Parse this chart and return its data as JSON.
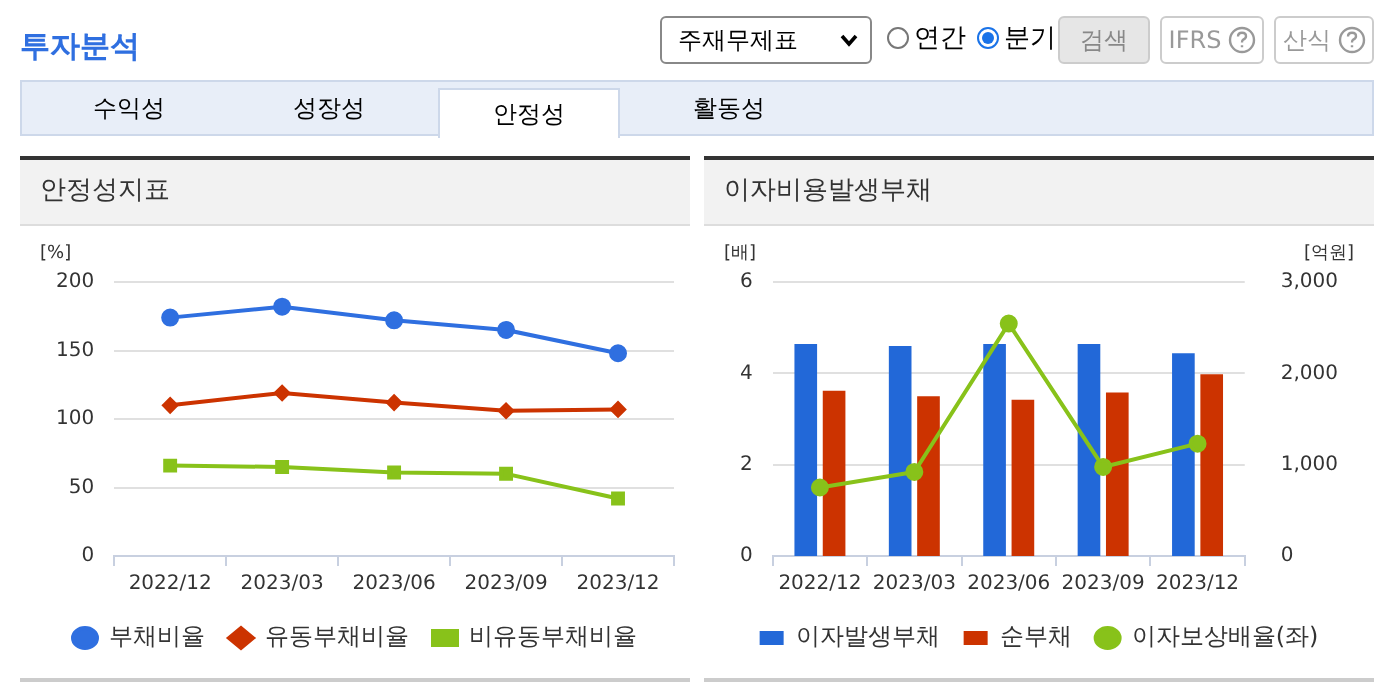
{
  "chart_data": [
    {
      "type": "other",
      "title": "투자분석",
      "annotations": [
        "주재무제표",
        "연간",
        "분기",
        "검색",
        "IFRS",
        "산식",
        "수익성",
        "성장성",
        "안정성",
        "활동성"
      ]
    },
    {
      "type": "line",
      "title": "안정성지표",
      "ylabel": "[%]",
      "categories": [
        "2022/12",
        "2023/03",
        "2023/06",
        "2023/09",
        "2023/12"
      ],
      "series": [
        {
          "name": "부채비율",
          "color": "#2f6fe0",
          "marker": "circle",
          "values": [
            174,
            182,
            172,
            165,
            148
          ]
        },
        {
          "name": "유동부채비율",
          "color": "#cc3300",
          "marker": "diamond",
          "values": [
            110,
            119,
            112,
            106,
            107
          ]
        },
        {
          "name": "비유동부채비율",
          "color": "#88c21a",
          "marker": "square",
          "values": [
            66,
            65,
            61,
            60,
            42
          ]
        }
      ],
      "ylim": [
        0,
        200
      ],
      "yticks": [
        0,
        50,
        100,
        150,
        200
      ],
      "grid": "y",
      "legend": "bottom",
      "line_style": "solid"
    },
    {
      "type": "bar",
      "title": "이자비용발생부채",
      "ylabel": "[배]",
      "y2label": "[억원]",
      "categories": [
        "2022/12",
        "2023/03",
        "2023/06",
        "2023/09",
        "2023/12"
      ],
      "series": [
        {
          "name": "이자발생부채",
          "color": "#2268d8",
          "axis": "y2",
          "values": [
            2320,
            2300,
            2320,
            2320,
            2220
          ]
        },
        {
          "name": "순부채",
          "color": "#cc3300",
          "axis": "y2",
          "values": [
            1810,
            1750,
            1710,
            1790,
            1990
          ]
        },
        {
          "name": "이자보상배율(좌)",
          "type": "line",
          "color": "#88c21a",
          "marker": "circle",
          "values": [
            1.5,
            1.84,
            5.09,
            1.95,
            2.46
          ]
        }
      ],
      "ylim": [
        0,
        6
      ],
      "yticks": [
        0,
        2,
        4,
        6
      ],
      "y2lim": [
        0,
        3000
      ],
      "y2ticks": [
        0,
        {
          "value": 1000,
          "label": "1,000"
        },
        {
          "value": 2000,
          "label": "2,000"
        },
        {
          "value": 3000,
          "label": "3,000"
        }
      ],
      "grid": "y",
      "legend": "bottom",
      "line_style": "solid"
    }
  ]
}
